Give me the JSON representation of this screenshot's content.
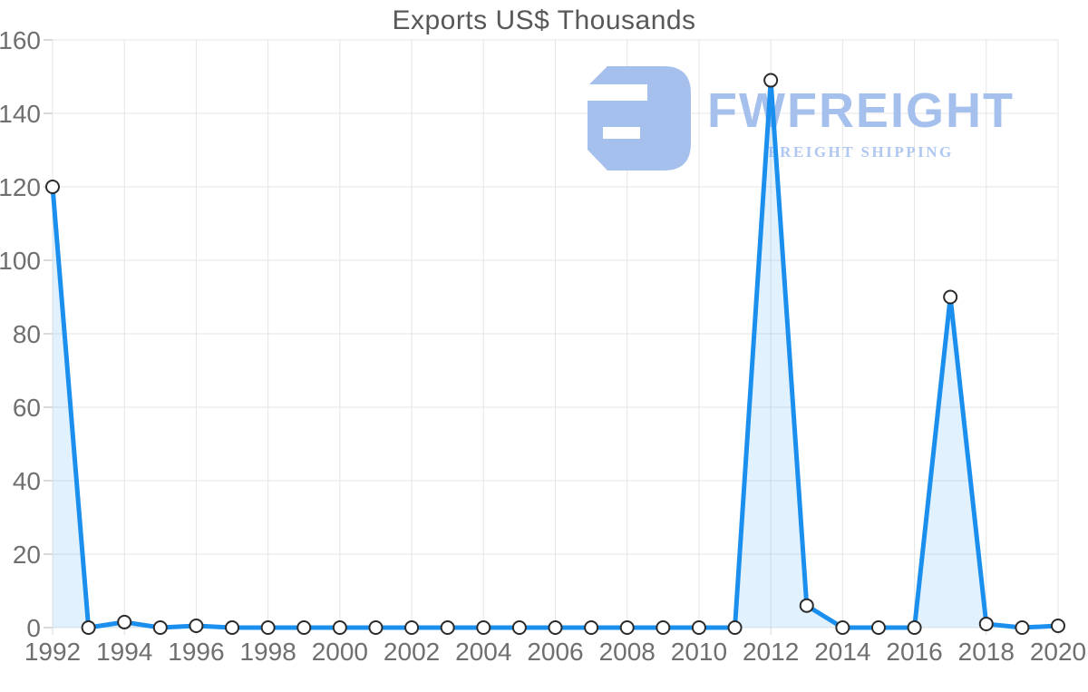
{
  "logo": {
    "wordmark": "FWFREIGHT",
    "tagline": "FREIGHT SHIPPING",
    "color": "#a6c0ee",
    "tagline_color": "#b0c7f1"
  },
  "chart_data": {
    "type": "area",
    "title": "Exports US$ Thousands",
    "xlabel": "",
    "ylabel": "",
    "x": [
      1992,
      1993,
      1994,
      1995,
      1996,
      1997,
      1998,
      1999,
      2000,
      2001,
      2002,
      2003,
      2004,
      2005,
      2006,
      2007,
      2008,
      2009,
      2010,
      2011,
      2012,
      2013,
      2014,
      2015,
      2016,
      2017,
      2018,
      2019,
      2020
    ],
    "values": [
      120,
      0,
      1.5,
      0,
      0.5,
      0,
      0,
      0,
      0,
      0,
      0,
      0,
      0,
      0,
      0,
      0,
      0,
      0,
      0,
      0,
      149,
      6,
      0,
      0,
      0,
      90,
      1,
      0,
      0.5
    ],
    "xlim": [
      1992,
      2020
    ],
    "ylim": [
      0,
      160
    ],
    "y_ticks": [
      0,
      20,
      40,
      60,
      80,
      100,
      120,
      140,
      160
    ],
    "x_tick_labels": [
      1992,
      1994,
      1996,
      1998,
      2000,
      2002,
      2004,
      2006,
      2008,
      2010,
      2012,
      2014,
      2016,
      2018,
      2020
    ],
    "grid": true,
    "legend": "none",
    "marker": "circle",
    "colors": {
      "line": "#1b8fee",
      "fill": "rgba(27,143,238,0.13)",
      "grid": "#e4e4e4",
      "y_tick": "#b5b5b5",
      "x_tick": "#d9d9d9",
      "axis_label": "#6f6f6f",
      "title": "#58585a",
      "point_fill": "#ffffff",
      "point_stroke": "#2b2b2b"
    }
  }
}
